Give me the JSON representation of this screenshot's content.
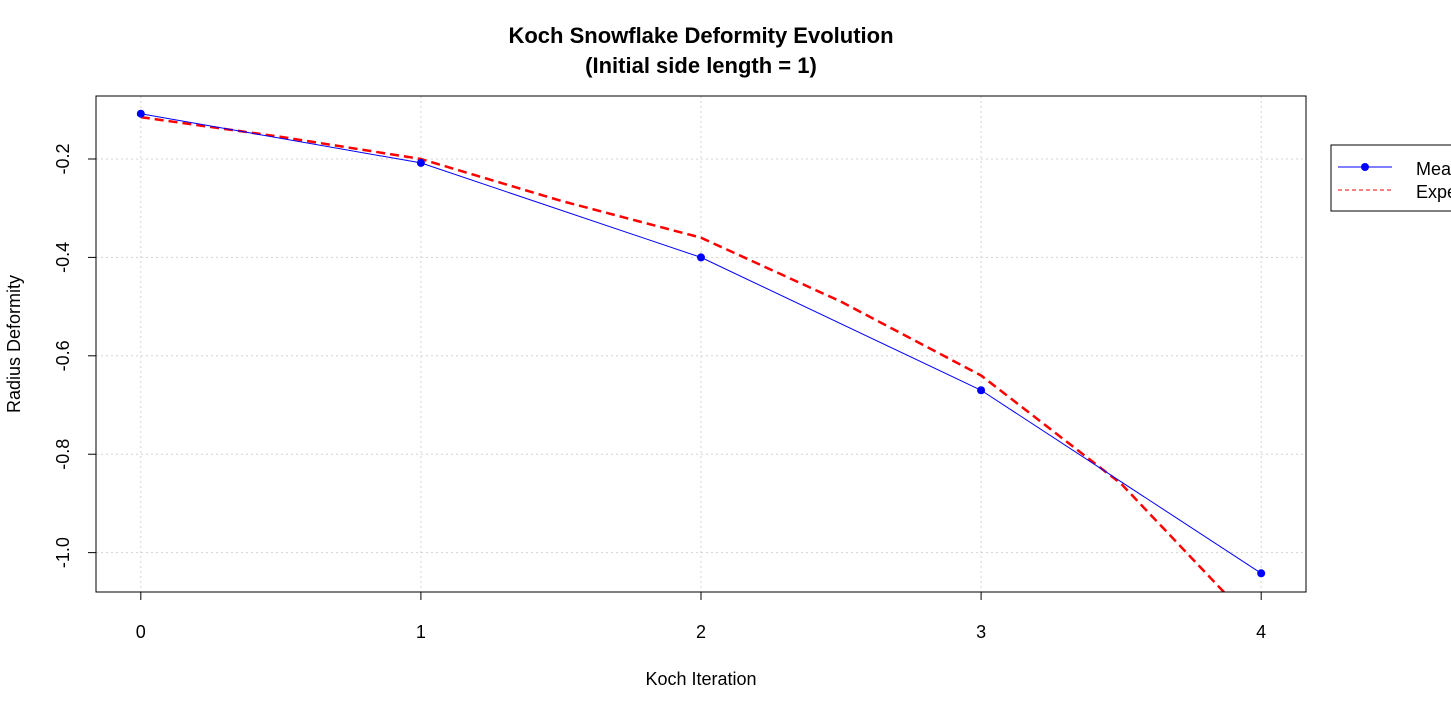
{
  "chart_data": {
    "type": "line",
    "title": "Koch Snowflake Deformity Evolution",
    "subtitle": "(Initial side length = 1)",
    "xlabel": "Koch Iteration",
    "ylabel": "Radius Deformity",
    "x": [
      0,
      1,
      2,
      3,
      4
    ],
    "xlim": [
      -0.16,
      4.16
    ],
    "ylim": [
      -1.08,
      -0.072
    ],
    "xticks": [
      0,
      1,
      2,
      3,
      4
    ],
    "yticks": [
      -0.2,
      -0.4,
      -0.6,
      -0.8,
      -1.0
    ],
    "ytick_labels": [
      "-0.2",
      "-0.4",
      "-0.6",
      "-0.8",
      "-1.0"
    ],
    "grid": true,
    "legend_position": "outside-right",
    "series": [
      {
        "name": "Mea",
        "style": "solid-with-points",
        "color": "#0000ff",
        "values": [
          -0.108,
          -0.208,
          -0.4,
          -0.67,
          -1.042
        ]
      },
      {
        "name": "Expe",
        "style": "dashed",
        "color": "#ff0000",
        "x": [
          0,
          0.5,
          1,
          1.5,
          2,
          2.5,
          3,
          3.5,
          4
        ],
        "values": [
          -0.115,
          -0.155,
          -0.2,
          -0.285,
          -0.36,
          -0.49,
          -0.64,
          -0.86,
          -1.16
        ]
      }
    ]
  }
}
